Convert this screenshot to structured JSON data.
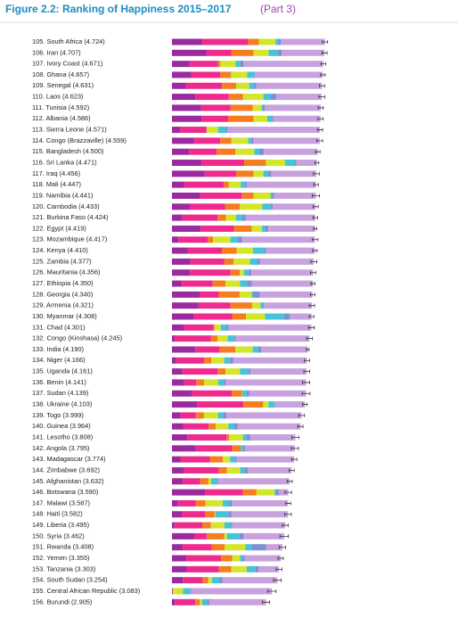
{
  "chart_data": {
    "type": "bar",
    "orientation": "horizontal",
    "stacked": true,
    "title": "Figure 2.2: Ranking of Happiness 2015–2017",
    "subtitle": "(Part 3)",
    "categories": [
      "105. South Africa (4.724)",
      "106. Iran (4.707)",
      "107. Ivory Coast (4.671)",
      "108. Ghana (4.657)",
      "109. Senegal (4.631)",
      "110. Laos (4.623)",
      "111. Tunisia (4.592)",
      "112. Albania (4.586)",
      "113. Sierra Leone (4.571)",
      "114. Congo (Brazzaville) (4.559)",
      "115. Bangladesh (4.500)",
      "116. Sri Lanka (4.471)",
      "117. Iraq (4.456)",
      "118. Mali (4.447)",
      "119. Namibia (4.441)",
      "120. Cambodia (4.433)",
      "121. Burkina Faso (4.424)",
      "122. Egypt (4.419)",
      "123. Mozambique (4.417)",
      "124. Kenya (4.410)",
      "125. Zambia (4.377)",
      "126. Mauritania (4.356)",
      "127. Ethiopia (4.350)",
      "128. Georgia (4.340)",
      "129. Armenia (4.321)",
      "130. Myanmar (4.308)",
      "131. Chad (4.301)",
      "132. Congo (Kinshasa) (4.245)",
      "133. India (4.190)",
      "134. Niger (4.166)",
      "135. Uganda (4.161)",
      "136. Benin (4.141)",
      "137. Sudan (4.139)",
      "138. Ukraine (4.103)",
      "139. Togo (3.999)",
      "140. Guinea (3.964)",
      "141. Lesotho (3.808)",
      "142. Angola (3.795)",
      "143. Madagascar (3.774)",
      "144. Zimbabwe (3.692)",
      "145. Afghanistan (3.632)",
      "146. Botswana (3.590)",
      "147. Malawi (3.587)",
      "148. Haiti (3.582)",
      "149. Liberia (3.495)",
      "150. Syria (3.462)",
      "151. Rwanda (3.408)",
      "152. Yemen (3.355)",
      "153. Tanzania (3.303)",
      "154. South Sudan (3.254)",
      "155. Central African Republic (3.083)",
      "156. Burundi (2.905)"
    ],
    "xlim": [
      0,
      8.8
    ],
    "series": [
      {
        "color": "#9a2aa0",
        "values": [
          0.94,
          1.059,
          0.541,
          0.592,
          0.429,
          0.72,
          0.9,
          0.916,
          0.256,
          0.682,
          0.532,
          0.918,
          1.01,
          0.37,
          0.874,
          0.549,
          0.314,
          0.885,
          0.198,
          0.493,
          0.562,
          0.557,
          0.308,
          0.853,
          0.816,
          0.682,
          0.358,
          0.069,
          0.721,
          0.131,
          0.322,
          0.378,
          0.605,
          0.793,
          0.259,
          0.344,
          0.472,
          0.73,
          0.262,
          0.357,
          0.332,
          1.017,
          0.186,
          0.315,
          0.076,
          0.689,
          0.332,
          0.442,
          0.455,
          0.337,
          0.024,
          0.091
        ]
      },
      {
        "color": "#ee2a8f",
        "values": [
          1.41,
          0.771,
          0.872,
          0.896,
          1.117,
          1.034,
          0.906,
          0.817,
          0.813,
          0.811,
          0.85,
          1.314,
          0.971,
          1.233,
          1.281,
          1.088,
          1.097,
          1.025,
          0.902,
          1.048,
          1.047,
          1.245,
          0.95,
          0.592,
          0.99,
          1.174,
          0.907,
          1.136,
          0.747,
          0.867,
          1.09,
          0.372,
          1.24,
          1.413,
          0.474,
          0.792,
          1.215,
          1.125,
          0.908,
          1.094,
          0.537,
          1.174,
          0.541,
          0.714,
          0.858,
          0.382,
          0.896,
          1.073,
          0.991,
          0.608,
          0.0,
          0.627
        ]
      },
      {
        "color": "#f47d20",
        "values": [
          0.33,
          0.691,
          0.08,
          0.337,
          0.433,
          0.441,
          0.69,
          0.79,
          0.0,
          0.343,
          0.579,
          0.672,
          0.536,
          0.152,
          0.365,
          0.457,
          0.254,
          0.553,
          0.173,
          0.454,
          0.295,
          0.292,
          0.391,
          0.643,
          0.666,
          0.429,
          0.053,
          0.204,
          0.485,
          0.221,
          0.237,
          0.24,
          0.312,
          0.609,
          0.253,
          0.211,
          0.079,
          0.269,
          0.402,
          0.248,
          0.255,
          0.417,
          0.306,
          0.289,
          0.267,
          0.539,
          0.4,
          0.343,
          0.381,
          0.177,
          0.01,
          0.145
        ]
      },
      {
        "color": "#d4e62a",
        "values": [
          0.516,
          0.459,
          0.467,
          0.499,
          0.406,
          0.626,
          0.271,
          0.419,
          0.355,
          0.514,
          0.58,
          0.585,
          0.304,
          0.367,
          0.519,
          0.696,
          0.312,
          0.312,
          0.531,
          0.504,
          0.503,
          0.129,
          0.452,
          0.375,
          0.26,
          0.58,
          0.189,
          0.312,
          0.539,
          0.39,
          0.45,
          0.44,
          0.016,
          0.163,
          0.434,
          0.394,
          0.423,
          0.0,
          0.221,
          0.406,
          0.085,
          0.557,
          0.531,
          0.025,
          0.419,
          0.088,
          0.636,
          0.244,
          0.481,
          0.112,
          0.305,
          0.065
        ]
      },
      {
        "color": "#45c3d8",
        "values": [
          0.103,
          0.282,
          0.146,
          0.212,
          0.138,
          0.23,
          0.04,
          0.149,
          0.238,
          0.091,
          0.153,
          0.307,
          0.148,
          0.139,
          0.051,
          0.256,
          0.175,
          0.092,
          0.206,
          0.352,
          0.221,
          0.134,
          0.22,
          0.038,
          0.077,
          0.598,
          0.181,
          0.197,
          0.172,
          0.175,
          0.259,
          0.163,
          0.134,
          0.187,
          0.158,
          0.185,
          0.116,
          0.079,
          0.155,
          0.132,
          0.191,
          0.042,
          0.21,
          0.392,
          0.206,
          0.376,
          0.2,
          0.083,
          0.27,
          0.224,
          0.218,
          0.149
        ]
      },
      {
        "color": "#7f8fd3",
        "values": [
          0.056,
          0.129,
          0.103,
          0.029,
          0.082,
          0.174,
          0.063,
          0.032,
          0.053,
          0.077,
          0.144,
          0.05,
          0.095,
          0.056,
          0.064,
          0.065,
          0.128,
          0.107,
          0.158,
          0.055,
          0.082,
          0.093,
          0.146,
          0.215,
          0.028,
          0.178,
          0.06,
          0.052,
          0.093,
          0.099,
          0.061,
          0.067,
          0.082,
          0.011,
          0.101,
          0.094,
          0.112,
          0.061,
          0.049,
          0.099,
          0.036,
          0.092,
          0.08,
          0.104,
          0.03,
          0.144,
          0.444,
          0.064,
          0.097,
          0.106,
          0.038,
          0.076
        ]
      },
      {
        "color": "#c8a2de",
        "values": [
          1.369,
          1.316,
          2.462,
          2.092,
          2.026,
          1.398,
          1.722,
          1.463,
          2.856,
          2.041,
          1.662,
          0.625,
          1.392,
          2.13,
          1.287,
          1.322,
          2.144,
          1.445,
          2.249,
          1.504,
          1.667,
          1.906,
          1.883,
          1.624,
          1.484,
          0.667,
          2.553,
          2.275,
          1.433,
          2.283,
          1.742,
          2.481,
          1.75,
          0.927,
          2.32,
          1.944,
          1.391,
          1.531,
          1.777,
          1.356,
          2.196,
          0.291,
          1.733,
          1.743,
          1.639,
          1.244,
          0.5,
          1.106,
          0.628,
          1.69,
          2.488,
          1.752
        ]
      }
    ],
    "errors": [
      0.08,
      0.08,
      0.07,
      0.07,
      0.08,
      0.09,
      0.08,
      0.08,
      0.08,
      0.09,
      0.07,
      0.06,
      0.09,
      0.07,
      0.11,
      0.08,
      0.07,
      0.05,
      0.09,
      0.07,
      0.09,
      0.08,
      0.06,
      0.07,
      0.08,
      0.07,
      0.09,
      0.09,
      0.04,
      0.08,
      0.09,
      0.11,
      0.12,
      0.07,
      0.09,
      0.08,
      0.11,
      0.11,
      0.08,
      0.08,
      0.08,
      0.1,
      0.08,
      0.1,
      0.09,
      0.13,
      0.1,
      0.08,
      0.09,
      0.12,
      0.13,
      0.11
    ]
  }
}
